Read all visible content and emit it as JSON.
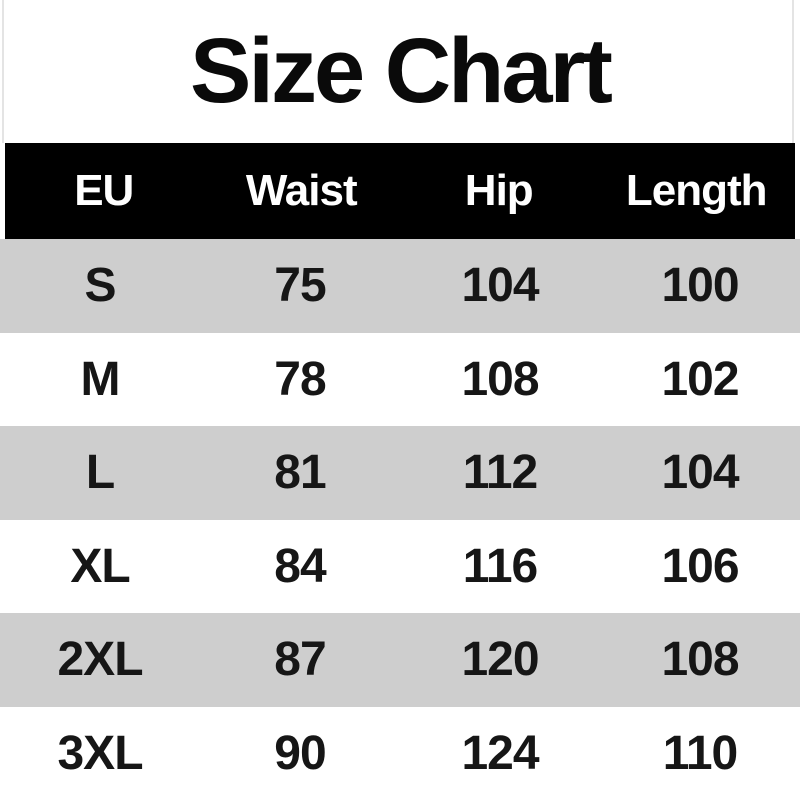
{
  "title": "Size Chart",
  "table": {
    "headers": [
      "EU",
      "Waist",
      "Hip",
      "Length"
    ],
    "rows": [
      [
        "S",
        "75",
        "104",
        "100"
      ],
      [
        "M",
        "78",
        "108",
        "102"
      ],
      [
        "L",
        "81",
        "112",
        "104"
      ],
      [
        "XL",
        "84",
        "116",
        "106"
      ],
      [
        "2XL",
        "87",
        "120",
        "108"
      ],
      [
        "3XL",
        "90",
        "124",
        "110"
      ]
    ]
  },
  "colors": {
    "header_bg": "#000000",
    "header_text": "#ffffff",
    "row_shade_bg": "#cecece",
    "row_plain_bg": "#ffffff",
    "body_text": "#161616",
    "title_text": "#0a0a0a",
    "edge_line": "#e4e4e4"
  },
  "chart_data": {
    "type": "table",
    "title": "Size Chart",
    "columns": [
      "EU",
      "Waist",
      "Hip",
      "Length"
    ],
    "rows": [
      [
        "S",
        75,
        104,
        100
      ],
      [
        "M",
        78,
        108,
        102
      ],
      [
        "L",
        81,
        112,
        104
      ],
      [
        "XL",
        84,
        116,
        106
      ],
      [
        "2XL",
        87,
        120,
        108
      ],
      [
        "3XL",
        90,
        124,
        110
      ]
    ],
    "layout_hints": {
      "header_style": "white bold text on black band",
      "row_striping": "odd rows light gray (#cecece), even rows white",
      "column_alignment": "all centered, 4 equal columns"
    }
  }
}
